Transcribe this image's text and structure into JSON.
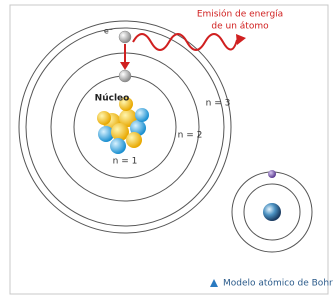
{
  "emission": {
    "line1": "Emisión de energía",
    "line2": "de un átomo"
  },
  "labels": {
    "electron": "e⁻",
    "nucleus": "Núcleo",
    "n1": "n = 1",
    "n2": "n = 2",
    "n3": "n = 3"
  },
  "caption": "Modelo atómico de Bohr"
}
